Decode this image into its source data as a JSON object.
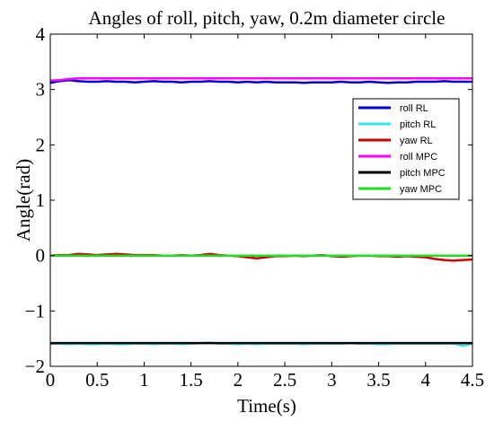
{
  "chart_data": {
    "type": "line",
    "title": "Angles of roll, pitch, yaw, 0.2m diameter circle",
    "xlabel": "Time(s)",
    "ylabel": "Angle(rad)",
    "xlim": [
      0,
      4.5
    ],
    "ylim": [
      -2,
      4
    ],
    "xticks": [
      "0",
      "0.5",
      "1",
      "1.5",
      "2",
      "2.5",
      "3",
      "3.5",
      "4",
      "4.5"
    ],
    "yticks": [
      "−2",
      "−1",
      "0",
      "1",
      "2",
      "3",
      "4"
    ],
    "grid": false,
    "legend_position": "right",
    "x": [
      0.0,
      0.1,
      0.2,
      0.3,
      0.4,
      0.5,
      0.6,
      0.7,
      0.8,
      0.9,
      1.0,
      1.1,
      1.2,
      1.3,
      1.4,
      1.5,
      1.6,
      1.7,
      1.8,
      1.9,
      2.0,
      2.1,
      2.2,
      2.3,
      2.4,
      2.5,
      2.6,
      2.7,
      2.8,
      2.9,
      3.0,
      3.1,
      3.2,
      3.3,
      3.4,
      3.5,
      3.6,
      3.7,
      3.8,
      3.9,
      4.0,
      4.1,
      4.2,
      4.3,
      4.4,
      4.5
    ],
    "series": [
      {
        "name": "roll RL",
        "color": "#0000cc",
        "values": [
          3.12,
          3.15,
          3.17,
          3.15,
          3.14,
          3.14,
          3.15,
          3.14,
          3.14,
          3.13,
          3.14,
          3.15,
          3.14,
          3.14,
          3.13,
          3.14,
          3.14,
          3.15,
          3.14,
          3.14,
          3.13,
          3.14,
          3.13,
          3.14,
          3.13,
          3.13,
          3.13,
          3.12,
          3.13,
          3.13,
          3.13,
          3.14,
          3.13,
          3.13,
          3.14,
          3.13,
          3.12,
          3.13,
          3.13,
          3.14,
          3.14,
          3.14,
          3.15,
          3.14,
          3.14,
          3.14
        ]
      },
      {
        "name": "pitch RL",
        "color": "#33e6e6",
        "values": [
          -1.59,
          -1.59,
          -1.6,
          -1.59,
          -1.6,
          -1.6,
          -1.59,
          -1.6,
          -1.6,
          -1.59,
          -1.59,
          -1.6,
          -1.59,
          -1.59,
          -1.6,
          -1.59,
          -1.58,
          -1.57,
          -1.59,
          -1.59,
          -1.6,
          -1.59,
          -1.6,
          -1.59,
          -1.59,
          -1.59,
          -1.59,
          -1.6,
          -1.59,
          -1.59,
          -1.59,
          -1.59,
          -1.58,
          -1.59,
          -1.59,
          -1.6,
          -1.6,
          -1.59,
          -1.59,
          -1.59,
          -1.59,
          -1.59,
          -1.59,
          -1.59,
          -1.63,
          -1.59
        ]
      },
      {
        "name": "yaw RL",
        "color": "#cc0000",
        "values": [
          0.0,
          0.01,
          0.01,
          0.03,
          0.02,
          0.01,
          0.02,
          0.03,
          0.02,
          0.01,
          0.01,
          0.01,
          0.0,
          0.0,
          0.01,
          0.0,
          0.01,
          0.03,
          0.01,
          0.0,
          -0.01,
          -0.03,
          -0.05,
          -0.03,
          -0.01,
          -0.01,
          0.0,
          -0.01,
          0.0,
          0.01,
          -0.01,
          -0.02,
          -0.01,
          0.0,
          0.0,
          -0.01,
          -0.01,
          -0.02,
          -0.01,
          -0.02,
          -0.03,
          -0.06,
          -0.08,
          -0.09,
          -0.08,
          -0.07
        ]
      },
      {
        "name": "roll MPC",
        "color": "#ff00ff",
        "values": [
          3.16,
          3.17,
          3.19,
          3.2,
          3.2,
          3.2,
          3.2,
          3.2,
          3.2,
          3.2,
          3.2,
          3.2,
          3.2,
          3.2,
          3.2,
          3.2,
          3.2,
          3.2,
          3.2,
          3.2,
          3.2,
          3.2,
          3.2,
          3.2,
          3.2,
          3.2,
          3.2,
          3.2,
          3.2,
          3.2,
          3.2,
          3.2,
          3.2,
          3.2,
          3.2,
          3.2,
          3.2,
          3.2,
          3.2,
          3.2,
          3.2,
          3.2,
          3.2,
          3.2,
          3.2,
          3.2
        ]
      },
      {
        "name": "pitch MPC",
        "color": "#000000",
        "values": [
          -1.58,
          -1.58,
          -1.58,
          -1.58,
          -1.58,
          -1.58,
          -1.58,
          -1.58,
          -1.58,
          -1.58,
          -1.58,
          -1.58,
          -1.58,
          -1.58,
          -1.58,
          -1.58,
          -1.58,
          -1.58,
          -1.58,
          -1.58,
          -1.58,
          -1.58,
          -1.58,
          -1.58,
          -1.58,
          -1.58,
          -1.58,
          -1.58,
          -1.58,
          -1.58,
          -1.58,
          -1.58,
          -1.58,
          -1.58,
          -1.58,
          -1.58,
          -1.58,
          -1.58,
          -1.58,
          -1.58,
          -1.58,
          -1.58,
          -1.58,
          -1.58,
          -1.58,
          -1.58
        ]
      },
      {
        "name": "yaw MPC",
        "color": "#22dd22",
        "values": [
          0.0,
          0.0,
          0.0,
          0.0,
          0.0,
          0.0,
          0.0,
          0.0,
          0.0,
          0.0,
          0.0,
          0.0,
          0.0,
          0.0,
          0.0,
          0.0,
          0.0,
          0.0,
          0.0,
          0.0,
          0.0,
          0.0,
          0.0,
          0.0,
          0.0,
          0.0,
          0.0,
          0.0,
          0.0,
          0.0,
          0.0,
          0.0,
          0.0,
          0.0,
          0.0,
          0.0,
          0.0,
          0.0,
          0.0,
          0.0,
          0.0,
          0.0,
          0.0,
          0.0,
          0.0,
          0.0
        ]
      }
    ]
  }
}
